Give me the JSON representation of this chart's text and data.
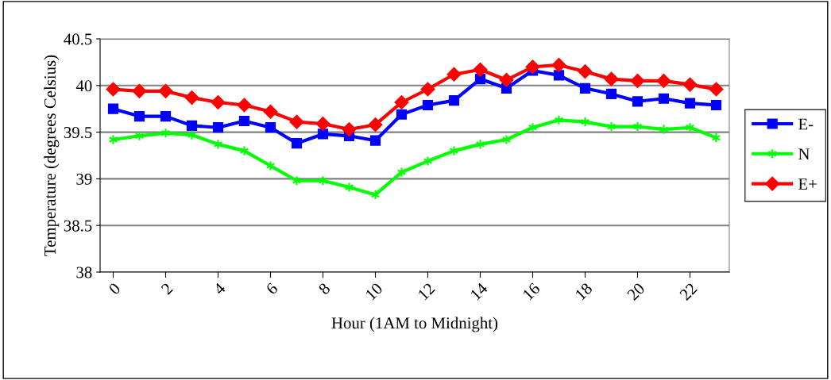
{
  "chart_data": {
    "type": "line",
    "xlabel": "Hour (1AM to Midnight)",
    "ylabel": "Temperature (degrees Celsius)",
    "x": [
      0,
      1,
      2,
      3,
      4,
      5,
      6,
      7,
      8,
      9,
      10,
      11,
      12,
      13,
      14,
      15,
      16,
      17,
      18,
      19,
      20,
      21,
      22,
      23
    ],
    "xlim": [
      -0.5,
      23.5
    ],
    "xticks": [
      0,
      2,
      4,
      6,
      8,
      10,
      12,
      14,
      16,
      18,
      20,
      22
    ],
    "ylim": [
      38,
      40.5
    ],
    "yticks": [
      38,
      38.5,
      39,
      39.5,
      40,
      40.5
    ],
    "grid": "y",
    "legend": "right",
    "series": [
      {
        "name": "E-",
        "color": "#0000ff",
        "marker": "square",
        "values": [
          39.75,
          39.67,
          39.67,
          39.57,
          39.55,
          39.62,
          39.55,
          39.38,
          39.48,
          39.46,
          39.41,
          39.69,
          39.79,
          39.84,
          40.07,
          39.97,
          40.16,
          40.11,
          39.97,
          39.91,
          39.83,
          39.86,
          39.81,
          39.79
        ]
      },
      {
        "name": "N",
        "color": "#00ff00",
        "marker": "cross",
        "values": [
          39.42,
          39.46,
          39.49,
          39.47,
          39.37,
          39.3,
          39.14,
          38.98,
          38.98,
          38.91,
          38.83,
          39.07,
          39.19,
          39.3,
          39.37,
          39.42,
          39.55,
          39.63,
          39.61,
          39.56,
          39.56,
          39.53,
          39.55,
          39.44
        ]
      },
      {
        "name": "E+",
        "color": "#ff0000",
        "marker": "diamond",
        "values": [
          39.96,
          39.94,
          39.94,
          39.87,
          39.82,
          39.79,
          39.72,
          39.61,
          39.59,
          39.53,
          39.58,
          39.82,
          39.96,
          40.12,
          40.17,
          40.06,
          40.2,
          40.22,
          40.15,
          40.07,
          40.05,
          40.05,
          40.01,
          39.96
        ]
      }
    ]
  }
}
